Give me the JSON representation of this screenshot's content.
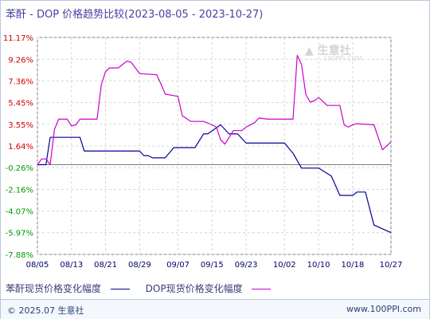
{
  "title": "苯酐 - DOP 价格趋势比较(2023-08-05 - 2023-10-27)",
  "logo": {
    "text": "生意社",
    "sub": "100PPI.COM"
  },
  "footer": {
    "copyright": "© 2025.07 生意社",
    "url": "www.100PPI.com"
  },
  "chart_data": {
    "type": "line",
    "title": "苯酐 - DOP 价格趋势比较(2023-08-05 - 2023-10-27)",
    "xlabel": "",
    "ylabel": "",
    "x_ticks": [
      "08/05",
      "08/13",
      "08/21",
      "08/29",
      "09/07",
      "09/15",
      "09/23",
      "10/02",
      "10/10",
      "10/18",
      "10/27"
    ],
    "y_ticks": [
      "11.17%",
      "9.26%",
      "7.36%",
      "5.45%",
      "3.55%",
      "1.64%",
      "-0.26%",
      "-2.16%",
      "-4.07%",
      "-5.97%",
      "-7.88%"
    ],
    "ylim": [
      -7.88,
      11.17
    ],
    "xlim": [
      "2023-08-05",
      "2023-10-27"
    ],
    "grid": true,
    "legend_position": "bottom",
    "series": [
      {
        "name": "苯酐现货价格变化幅度",
        "color": "#000099",
        "points": [
          [
            "2023-08-05",
            0.0
          ],
          [
            "2023-08-07",
            0.0
          ],
          [
            "2023-08-08",
            2.4
          ],
          [
            "2023-08-15",
            2.4
          ],
          [
            "2023-08-16",
            1.2
          ],
          [
            "2023-08-29",
            1.2
          ],
          [
            "2023-08-30",
            0.8
          ],
          [
            "2023-08-31",
            0.8
          ],
          [
            "2023-09-01",
            0.6
          ],
          [
            "2023-09-04",
            0.6
          ],
          [
            "2023-09-06",
            1.5
          ],
          [
            "2023-09-11",
            1.5
          ],
          [
            "2023-09-13",
            2.7
          ],
          [
            "2023-09-14",
            2.7
          ],
          [
            "2023-09-17",
            3.5
          ],
          [
            "2023-09-19",
            2.7
          ],
          [
            "2023-09-21",
            2.7
          ],
          [
            "2023-09-23",
            1.9
          ],
          [
            "2023-10-02",
            1.9
          ],
          [
            "2023-10-04",
            1.0
          ],
          [
            "2023-10-06",
            -0.3
          ],
          [
            "2023-10-08",
            -0.3
          ],
          [
            "2023-10-10",
            -0.3
          ],
          [
            "2023-10-13",
            -1.0
          ],
          [
            "2023-10-15",
            -2.7
          ],
          [
            "2023-10-18",
            -2.7
          ],
          [
            "2023-10-19",
            -2.4
          ],
          [
            "2023-10-21",
            -2.4
          ],
          [
            "2023-10-23",
            -5.3
          ],
          [
            "2023-10-27",
            -5.97
          ]
        ]
      },
      {
        "name": "DOP现货价格变化幅度",
        "color": "#cc00cc",
        "points": [
          [
            "2023-08-05",
            0.0
          ],
          [
            "2023-08-06",
            0.5
          ],
          [
            "2023-08-07",
            0.5
          ],
          [
            "2023-08-08",
            0.0
          ],
          [
            "2023-08-09",
            3.1
          ],
          [
            "2023-08-10",
            4.0
          ],
          [
            "2023-08-12",
            4.0
          ],
          [
            "2023-08-13",
            3.4
          ],
          [
            "2023-08-14",
            3.5
          ],
          [
            "2023-08-15",
            4.0
          ],
          [
            "2023-08-19",
            4.0
          ],
          [
            "2023-08-20",
            7.0
          ],
          [
            "2023-08-21",
            8.2
          ],
          [
            "2023-08-22",
            8.5
          ],
          [
            "2023-08-24",
            8.5
          ],
          [
            "2023-08-26",
            9.1
          ],
          [
            "2023-08-27",
            9.0
          ],
          [
            "2023-08-28",
            8.5
          ],
          [
            "2023-08-29",
            8.0
          ],
          [
            "2023-09-02",
            7.9
          ],
          [
            "2023-09-03",
            7.1
          ],
          [
            "2023-09-04",
            6.2
          ],
          [
            "2023-09-07",
            6.0
          ],
          [
            "2023-09-08",
            4.3
          ],
          [
            "2023-09-10",
            3.8
          ],
          [
            "2023-09-13",
            3.8
          ],
          [
            "2023-09-15",
            3.5
          ],
          [
            "2023-09-16",
            3.3
          ],
          [
            "2023-09-17",
            2.2
          ],
          [
            "2023-09-18",
            1.8
          ],
          [
            "2023-09-20",
            3.0
          ],
          [
            "2023-09-22",
            3.0
          ],
          [
            "2023-09-23",
            3.3
          ],
          [
            "2023-09-25",
            3.7
          ],
          [
            "2023-09-26",
            4.1
          ],
          [
            "2023-09-28",
            4.0
          ],
          [
            "2023-10-04",
            4.0
          ],
          [
            "2023-10-05",
            9.6
          ],
          [
            "2023-10-06",
            8.8
          ],
          [
            "2023-10-07",
            6.2
          ],
          [
            "2023-10-08",
            5.5
          ],
          [
            "2023-10-09",
            5.6
          ],
          [
            "2023-10-10",
            5.9
          ],
          [
            "2023-10-12",
            5.2
          ],
          [
            "2023-10-15",
            5.2
          ],
          [
            "2023-10-16",
            3.5
          ],
          [
            "2023-10-17",
            3.3
          ],
          [
            "2023-10-18",
            3.5
          ],
          [
            "2023-10-19",
            3.6
          ],
          [
            "2023-10-23",
            3.5
          ],
          [
            "2023-10-25",
            1.3
          ],
          [
            "2023-10-27",
            2.0
          ]
        ]
      }
    ]
  }
}
